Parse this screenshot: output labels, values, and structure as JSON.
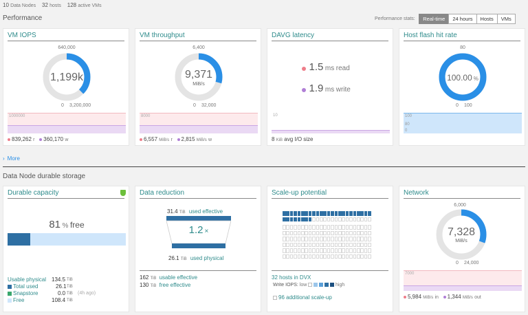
{
  "top": {
    "nodes_count": "10",
    "nodes_label": "Data Nodes",
    "hosts_count": "32",
    "hosts_label": "hosts",
    "vms_count": "128",
    "vms_label": "active VMs"
  },
  "performance": {
    "title": "Performance",
    "stats_label": "Performance stats:",
    "buttons": [
      "Real-time",
      "24 hours",
      "Hosts",
      "VMs"
    ],
    "vm_iops": {
      "title": "VM IOPS",
      "center": "1,199k",
      "top": "640,000",
      "bottom_left": "0",
      "bottom_right": "3,200,000",
      "fill": 0.375,
      "chart_label": "1000000",
      "read_value": "839,262",
      "read_suffix": "r",
      "write_value": "360,170",
      "write_suffix": "w"
    },
    "vm_throughput": {
      "title": "VM throughput",
      "center": "9,371",
      "unit": "MiB/s",
      "top": "6,400",
      "bottom_left": "0",
      "bottom_right": "32,000",
      "fill": 0.293,
      "chart_label": "8000",
      "read_value": "6,557",
      "read_unit": "MiB/s",
      "read_suffix": "r",
      "write_value": "2,815",
      "write_unit": "MiB/s",
      "write_suffix": "w"
    },
    "davg": {
      "title": "DAVG latency",
      "read_value": "1.5",
      "read_unit": "ms",
      "read_label": "read",
      "write_value": "1.9",
      "write_unit": "ms",
      "write_label": "write",
      "chart_label": "10",
      "io_value": "8",
      "io_unit": "KiB",
      "io_label": "avg I/O size"
    },
    "flash": {
      "title": "Host flash hit rate",
      "center": "100.00",
      "unit": "%",
      "top": "80",
      "bottom_left": "0",
      "bottom_right": "100",
      "fill": 1.0,
      "chart_labels": [
        "100",
        "80",
        "0"
      ]
    }
  },
  "more_link": "More",
  "storage": {
    "title": "Data Node durable storage",
    "durable": {
      "title": "Durable capacity",
      "free_value": "81",
      "free_unit": "%",
      "free_label": "free",
      "used_fraction": 0.19,
      "usable_label": "Usable physical",
      "usable_value": "134.5",
      "usable_unit": "TiB",
      "total_used_label": "Total used",
      "total_used_value": "26.1",
      "total_used_unit": "TiB",
      "snapstore_label": "Snapstore",
      "snapstore_value": "0.0",
      "snapstore_unit": "TiB",
      "snapstore_note": "(4h ago)",
      "free_row_label": "Free",
      "free_row_value": "108.4",
      "free_row_unit": "TiB"
    },
    "reduction": {
      "title": "Data reduction",
      "top_value": "31.4",
      "top_unit": "TiB",
      "top_label": "used effective",
      "ratio": "1.2",
      "ratio_unit": "×",
      "bottom_value": "26.1",
      "bottom_unit": "TiB",
      "bottom_label": "used physical",
      "usable_eff_value": "162",
      "usable_eff_unit": "TiB",
      "usable_eff_label": "usable effective",
      "free_eff_value": "130",
      "free_eff_unit": "TiB",
      "free_eff_label": "free effective"
    },
    "scaleup": {
      "title": "Scale-up potential",
      "hosts_label": "32 hosts in DVX",
      "write_iops_label": "Write IOPS:",
      "low_label": "low",
      "high_label": "high",
      "additional_label": "96 additional scale-up",
      "filled_row1": 24,
      "filled_row2": 8
    },
    "network": {
      "title": "Network",
      "center": "7,328",
      "unit": "MiB/s",
      "top": "6,000",
      "bottom_left": "0",
      "bottom_right": "24,000",
      "fill": 0.305,
      "chart_label": "7000",
      "in_value": "5,984",
      "in_unit": "MiB/s",
      "in_label": "in",
      "out_value": "1,344",
      "out_unit": "MiB/s",
      "out_label": "out"
    }
  },
  "colors": {
    "accent": "#2a8fe6",
    "teal": "#2e8b8b",
    "read": "#ee7d8a",
    "write": "#b07fd6",
    "dark_blue": "#2e6fa3",
    "light_blue": "#cfe6fb"
  }
}
